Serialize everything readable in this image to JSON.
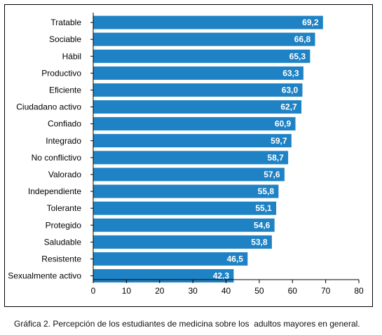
{
  "chart_data": {
    "type": "bar",
    "orientation": "horizontal",
    "categories": [
      "Tratable",
      "Sociable",
      "Hábil",
      "Productivo",
      "Eficiente",
      "Ciudadano activo",
      "Confiado",
      "Integrado",
      "No conflictivo",
      "Valorado",
      "Independiente",
      "Tolerante",
      "Protegido",
      "Saludable",
      "Resistente",
      "Sexualmente activo"
    ],
    "values": [
      69.2,
      66.8,
      65.3,
      63.3,
      63.0,
      62.7,
      60.9,
      59.7,
      58.7,
      57.6,
      55.8,
      55.1,
      54.6,
      53.8,
      46.5,
      42.3
    ],
    "value_labels": [
      "69,2",
      "66,8",
      "65,3",
      "63,3",
      "63,0",
      "62,7",
      "60,9",
      "59,7",
      "58,7",
      "57,6",
      "55,8",
      "55,1",
      "54,6",
      "53,8",
      "46,5",
      "42,3"
    ],
    "xlim": [
      0,
      80
    ],
    "xticks": [
      "0",
      "10",
      "20",
      "30",
      "40",
      "50",
      "60",
      "70",
      "80"
    ],
    "grid": false,
    "legend": "none",
    "bar_color": "#1f82c4",
    "label_color": "#ffffff",
    "title": "",
    "xlabel": "",
    "ylabel": ""
  },
  "caption": "Gráfica 2. Percepción de los estudiantes de medicina sobre los  adultos mayores en general."
}
